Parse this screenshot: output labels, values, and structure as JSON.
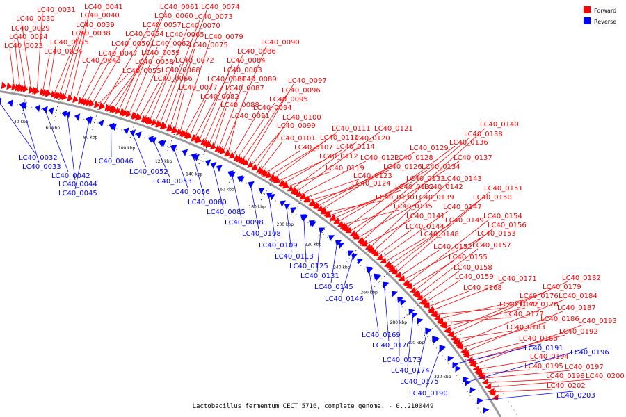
{
  "caption": "Lactobacillus fermentum CECT 5716, complete genome. - 0..2100449",
  "legend": [
    {
      "label": "Forward",
      "color": "#ff0000"
    },
    {
      "label": "Reverse",
      "color": "#0000ff"
    }
  ],
  "ticks": [
    "40 kbp",
    "60 kbp",
    "80 kbp",
    "100 kbp",
    "120 kbp",
    "140 kbp",
    "160 kbp",
    "180 kbp",
    "200 kbp",
    "220 kbp",
    "240 kbp",
    "260 kbp",
    "280 kbp",
    "300 kbp",
    "320 kbp"
  ],
  "forward_labels": [
    "LC40_0023",
    "LC40_0024",
    "LC40_0029",
    "LC40_0030",
    "LC40_0031",
    "LC40_0034",
    "LC40_0035",
    "LC40_0038",
    "LC40_0039",
    "LC40_0040",
    "LC40_0041",
    "LC40_0043",
    "LC40_0047",
    "LC40_0050",
    "LC40_0054",
    "LC40_0055",
    "LC40_0057",
    "LC40_0058",
    "LC40_0059",
    "LC40_0060",
    "LC40_0061",
    "LC40_0062",
    "LC40_0065",
    "LC40_0066",
    "LC40_0068",
    "LC40_0070",
    "LC40_0072",
    "LC40_0073",
    "LC40_0074",
    "LC40_0075",
    "LC40_0077",
    "LC40_0079",
    "LC40_0081",
    "LC40_0082",
    "LC40_0083",
    "LC40_0084",
    "LC40_0086",
    "LC40_0087",
    "LC40_0088",
    "LC40_0089",
    "LC40_0090",
    "LC40_0091",
    "LC40_0094",
    "LC40_0095",
    "LC40_0096",
    "LC40_0097",
    "LC40_0099",
    "LC40_0100",
    "LC40_0101",
    "LC40_0107",
    "LC40_0110",
    "LC40_0111",
    "LC40_0112",
    "LC40_0114",
    "LC40_0119",
    "LC40_0120",
    "LC40_0121",
    "LC40_0122",
    "LC40_0123",
    "LC40_0124",
    "LC40_0126",
    "LC40_0128",
    "LC40_0129",
    "LC40_0130",
    "LC40_0132",
    "LC40_0133",
    "LC40_0134",
    "LC40_0135",
    "LC40_0136",
    "LC40_0137",
    "LC40_0138",
    "LC40_0139",
    "LC40_0140",
    "LC40_0141",
    "LC40_0142",
    "LC40_0143",
    "LC40_0144",
    "LC40_0147",
    "LC40_0148",
    "LC40_0149",
    "LC40_0150",
    "LC40_0151",
    "LC40_0152",
    "LC40_0153",
    "LC40_0154",
    "LC40_0155",
    "LC40_0156",
    "LC40_0157",
    "LC40_0158",
    "LC40_0159",
    "LC40_0168",
    "LC40_0171",
    "LC40_0172",
    "LC40_0176",
    "LC40_0177",
    "LC40_0178",
    "LC40_0179",
    "LC40_0182",
    "LC40_0183",
    "LC40_0184",
    "LC40_0186",
    "LC40_0187",
    "LC40_0188",
    "LC40_0192",
    "LC40_0193",
    "LC40_0194",
    "LC40_0195",
    "LC40_0197",
    "LC40_0198",
    "LC40_0200",
    "LC40_0202"
  ],
  "reverse_labels": [
    "LC40_0032",
    "LC40_0033",
    "LC40_0042",
    "LC40_0044",
    "LC40_0045",
    "LC40_0046",
    "LC40_0052",
    "LC40_0053",
    "LC40_0056",
    "LC40_0080",
    "LC40_0085",
    "LC40_0098",
    "LC40_0108",
    "LC40_0109",
    "LC40_0113",
    "LC40_0125",
    "LC40_0131",
    "LC40_0145",
    "LC40_0146",
    "LC40_0169",
    "LC40_0170",
    "LC40_0173",
    "LC40_0174",
    "LC40_0175",
    "LC40_0190",
    "LC40_0191",
    "LC40_0196",
    "LC40_0203"
  ]
}
